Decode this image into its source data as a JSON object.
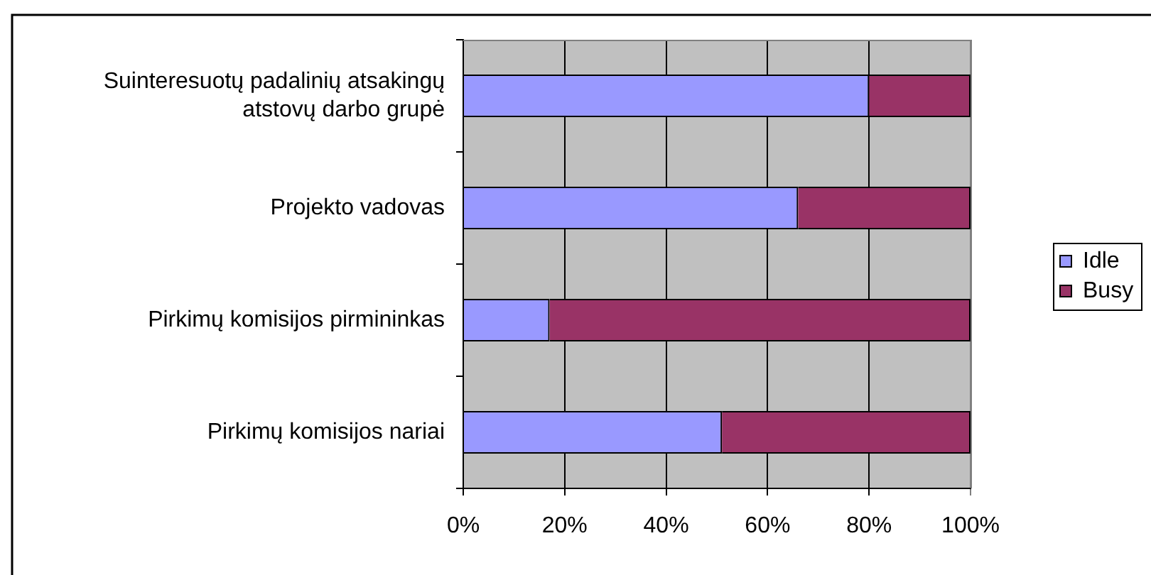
{
  "chart_data": {
    "type": "bar",
    "orientation": "horizontal",
    "stacked": true,
    "categories": [
      "Suinteresuotų padalinių atsakingų atstovų darbo grupė",
      "Projekto vadovas",
      "Pirkimų komisijos pirmininkas",
      "Pirkimų komisijos nariai"
    ],
    "series": [
      {
        "name": "Idle",
        "color": "#9999ff",
        "values": [
          80,
          66,
          17,
          51
        ]
      },
      {
        "name": "Busy",
        "color": "#993366",
        "values": [
          20,
          34,
          83,
          49
        ]
      }
    ],
    "xlim": [
      0,
      100
    ],
    "xticks": [
      {
        "value": 0,
        "label": "0%"
      },
      {
        "value": 20,
        "label": "20%"
      },
      {
        "value": 40,
        "label": "40%"
      },
      {
        "value": 60,
        "label": "60%"
      },
      {
        "value": 80,
        "label": "80%"
      },
      {
        "value": 100,
        "label": "100%"
      }
    ],
    "grid": "x",
    "legend": "right"
  }
}
